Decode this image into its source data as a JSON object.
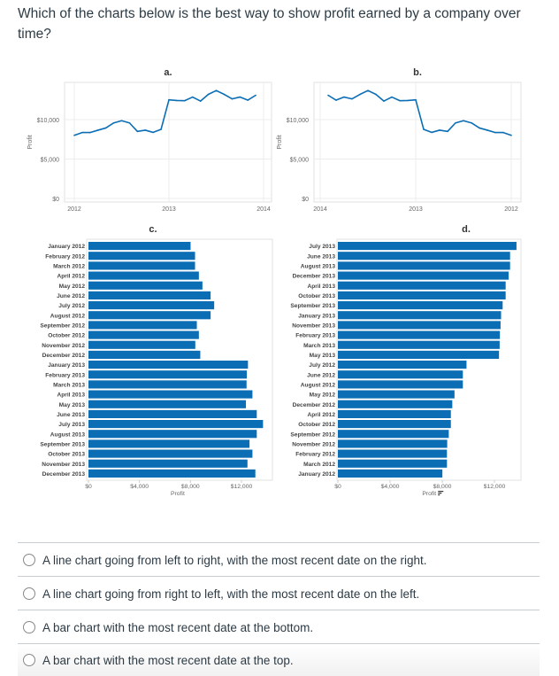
{
  "question": "Which of the charts below is the best way to show profit earned by a company over time?",
  "colors": {
    "series": "#0b6eb4",
    "grid": "#ececec",
    "axis_text": "#666666",
    "label_text": "#444444"
  },
  "chart_data": [
    {
      "id": "a",
      "title": "a.",
      "type": "line",
      "ylabel": "Profit",
      "ylim": [
        0,
        14500
      ],
      "yticks": [
        "$0",
        "$5,000",
        "$10,000"
      ],
      "ytick_values": [
        0,
        5000,
        10000
      ],
      "xticks": [
        "2012",
        "2013",
        "2014"
      ],
      "x_direction": "left-to-right",
      "grid": true
    },
    {
      "id": "b",
      "title": "b.",
      "type": "line",
      "ylabel": "Profit",
      "ylim": [
        0,
        14500
      ],
      "yticks": [
        "$0",
        "$5,000",
        "$10,000"
      ],
      "ytick_values": [
        0,
        5000,
        10000
      ],
      "xticks": [
        "2014",
        "2013",
        "2012"
      ],
      "x_direction": "right-to-left",
      "grid": true
    },
    {
      "id": "c",
      "title": "c.",
      "type": "bar",
      "xlabel": "Profit",
      "xlim": [
        0,
        14000
      ],
      "xticks": [
        "$0",
        "$4,000",
        "$8,000",
        "$12,000"
      ],
      "xtick_values": [
        0,
        4000,
        8000,
        12000
      ],
      "order": "chronological",
      "sort_icon": false
    },
    {
      "id": "d",
      "title": "d.",
      "type": "bar",
      "xlabel": "Profit",
      "xlim": [
        0,
        14000
      ],
      "xticks": [
        "$0",
        "$4,000",
        "$8,000",
        "$12,000"
      ],
      "xtick_values": [
        0,
        4000,
        8000,
        12000
      ],
      "order": "descending",
      "sort_icon": true
    }
  ],
  "series": {
    "categories": [
      "January 2012",
      "February 2012",
      "March 2012",
      "April 2012",
      "May 2012",
      "June 2012",
      "July 2012",
      "August 2012",
      "September 2012",
      "October 2012",
      "November 2012",
      "December 2012",
      "January 2013",
      "February 2013",
      "March 2013",
      "April 2013",
      "May 2013",
      "June 2013",
      "July 2013",
      "August 2013",
      "September 2013",
      "October 2013",
      "November 2013",
      "December 2013"
    ],
    "values": [
      8010,
      8360,
      8360,
      8660,
      8940,
      9580,
      9860,
      9580,
      8500,
      8660,
      8380,
      8770,
      12510,
      12420,
      12400,
      12860,
      12350,
      13200,
      13690,
      13200,
      12630,
      12860,
      12470,
      13090
    ]
  },
  "options": [
    {
      "label": "A line chart going from left to right, with the most recent date on the right."
    },
    {
      "label": "A line chart going from right to left, with the most recent date on the left."
    },
    {
      "label": "A bar chart with the most recent date at the bottom."
    },
    {
      "label": "A bar chart with the most recent date at the top."
    }
  ]
}
